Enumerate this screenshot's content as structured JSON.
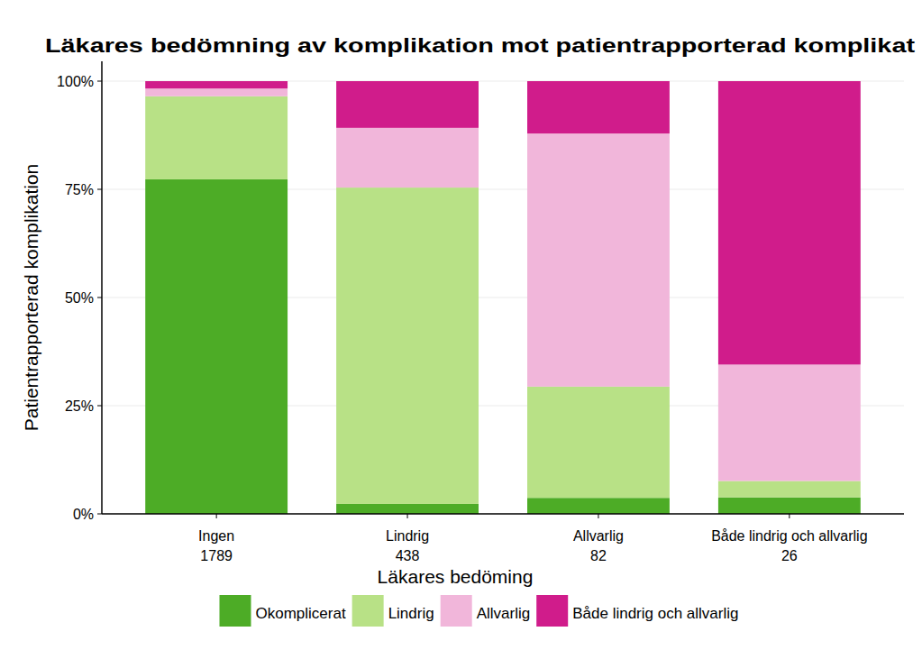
{
  "chart_data": {
    "type": "bar",
    "stacked": true,
    "title": "Läkares bedömning av komplikation mot patientrapporterad komplikat",
    "x_label": "Läkares bedöming",
    "y_label": "Patientrapporterad komplikation",
    "categories": [
      "Ingen",
      "Lindrig",
      "Allvarlig",
      "Både lindrig och allvarlig"
    ],
    "n": [
      1789,
      438,
      82,
      26
    ],
    "series": [
      {
        "name": "Okomplicerat",
        "color": "#4dac26",
        "values": [
          77.3,
          2.3,
          3.7,
          3.8
        ]
      },
      {
        "name": "Lindrig",
        "color": "#b8e186",
        "values": [
          19.2,
          73.1,
          25.7,
          3.8
        ]
      },
      {
        "name": "Allvarlig",
        "color": "#f1b6da",
        "values": [
          1.8,
          13.8,
          58.5,
          26.9
        ]
      },
      {
        "name": "Både lindrig och allvarlig",
        "color": "#d01c8b",
        "values": [
          1.7,
          10.8,
          12.1,
          65.5
        ]
      }
    ],
    "ylim": [
      0,
      100
    ],
    "yticks": [
      {
        "value": 0,
        "label": "0%"
      },
      {
        "value": 25,
        "label": "25%"
      },
      {
        "value": 50,
        "label": "50%"
      },
      {
        "value": 75,
        "label": "75%"
      },
      {
        "value": 100,
        "label": "100%"
      }
    ],
    "grid": true,
    "legend": "bottom"
  }
}
